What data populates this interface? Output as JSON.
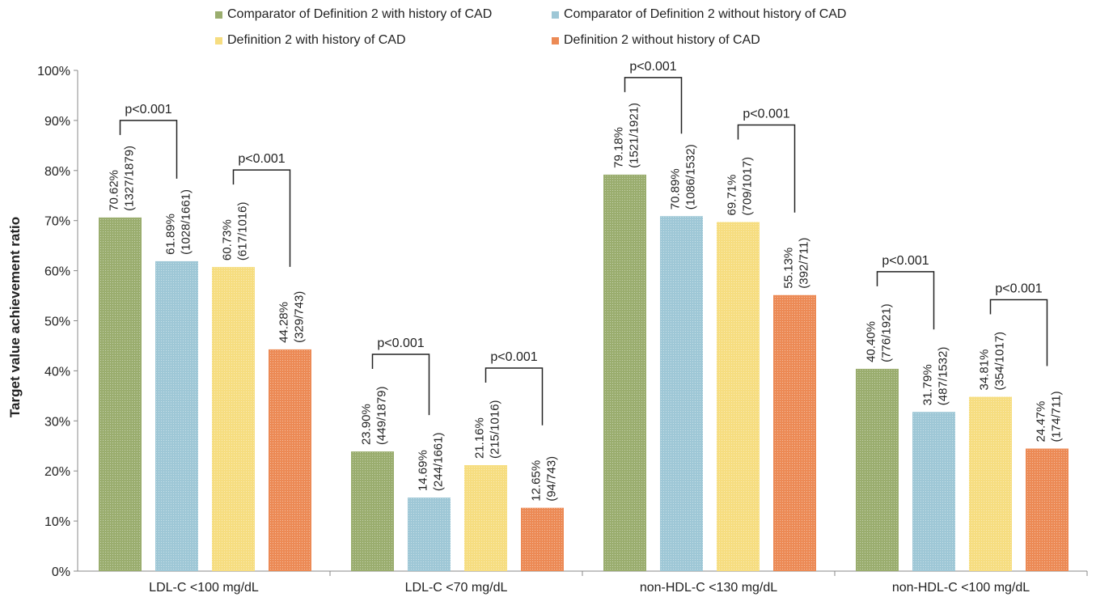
{
  "chart_data": {
    "type": "bar",
    "categories": [
      "LDL-C <100 mg/dL",
      "LDL-C <70 mg/dL",
      "non-HDL-C <130 mg/dL",
      "non-HDL-C <100 mg/dL"
    ],
    "series": [
      {
        "name": "Comparator of Definition 2 with history of CAD",
        "color": "#9aad6e",
        "values": [
          70.62,
          23.9,
          79.18,
          40.4
        ],
        "labels": [
          [
            "70.62%",
            "(1327/1879)"
          ],
          [
            "23.90%",
            "(449/1879)"
          ],
          [
            "79.18%",
            "(1521/1921)"
          ],
          [
            "40.40%",
            "(776/1921)"
          ]
        ]
      },
      {
        "name": "Comparator of Definition 2 without history of CAD",
        "color": "#9ec7d6",
        "values": [
          61.89,
          14.69,
          70.89,
          31.79
        ],
        "labels": [
          [
            "61.89%",
            "(1028/1661)"
          ],
          [
            "14.69%",
            "(244/1661)"
          ],
          [
            "70.89%",
            "(1086/1532)"
          ],
          [
            "31.79%",
            "(487/1532)"
          ]
        ]
      },
      {
        "name": "Definition 2 with history of CAD",
        "color": "#f6dd80",
        "values": [
          60.73,
          21.16,
          69.71,
          34.81
        ],
        "labels": [
          [
            "60.73%",
            "(617/1016)"
          ],
          [
            "21.16%",
            "(215/1016)"
          ],
          [
            "69.71%",
            "(709/1017)"
          ],
          [
            "34.81%",
            "(354/1017)"
          ]
        ]
      },
      {
        "name": "Definition 2 without history of CAD",
        "color": "#ec8a55",
        "values": [
          44.28,
          12.65,
          55.13,
          24.47
        ],
        "labels": [
          [
            "44.28%",
            "(329/743)"
          ],
          [
            "12.65%",
            "(94/743)"
          ],
          [
            "55.13%",
            "(392/711)"
          ],
          [
            "24.47%",
            "(174/711)"
          ]
        ]
      }
    ],
    "ylabel": "Target value achievement ratio",
    "ylim": [
      0,
      100
    ],
    "yticks": [
      "0%",
      "10%",
      "20%",
      "30%",
      "40%",
      "50%",
      "60%",
      "70%",
      "80%",
      "90%",
      "100%"
    ],
    "annotations": [
      {
        "text": "p<0.001",
        "category": 0,
        "from_series": 0,
        "to_series": 1
      },
      {
        "text": "p<0.001",
        "category": 0,
        "from_series": 2,
        "to_series": 3
      },
      {
        "text": "p<0.001",
        "category": 1,
        "from_series": 0,
        "to_series": 1
      },
      {
        "text": "p<0.001",
        "category": 1,
        "from_series": 2,
        "to_series": 3
      },
      {
        "text": "p<0.001",
        "category": 2,
        "from_series": 0,
        "to_series": 1
      },
      {
        "text": "p<0.001",
        "category": 2,
        "from_series": 2,
        "to_series": 3
      },
      {
        "text": "p<0.001",
        "category": 3,
        "from_series": 0,
        "to_series": 1
      },
      {
        "text": "p<0.001",
        "category": 3,
        "from_series": 2,
        "to_series": 3
      }
    ],
    "grid": false,
    "legend_position": "top"
  }
}
